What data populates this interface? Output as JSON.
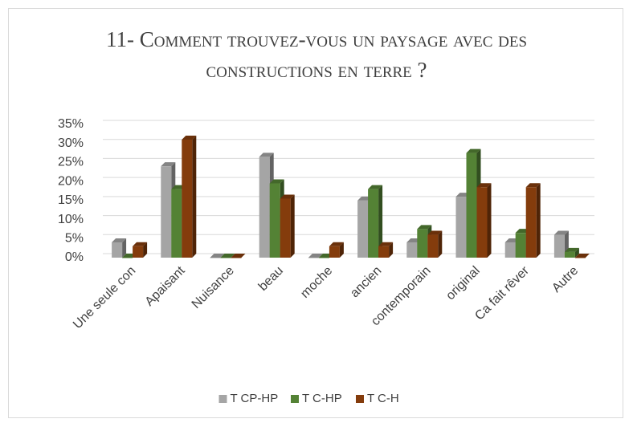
{
  "chart_data": {
    "type": "bar3d",
    "title": "11- Comment trouvez-vous un paysage avec des constructions en terre ?",
    "categories": [
      "Une seule con",
      "Apaisant",
      "Nuisance",
      "beau",
      "moche",
      "ancien",
      "contemporain",
      "original",
      "Ca fait rêver",
      "Autre"
    ],
    "series": [
      {
        "name": "T CP-HP",
        "color": "#a5a5a5",
        "values": [
          4,
          24,
          0,
          26.5,
          0,
          15,
          4,
          16,
          4,
          6
        ]
      },
      {
        "name": "T C-HP",
        "color": "#548235",
        "values": [
          0,
          18,
          0,
          19.5,
          0,
          18,
          7.5,
          27.5,
          6.5,
          1.5
        ]
      },
      {
        "name": "T C-H",
        "color": "#843c0c",
        "values": [
          3,
          31,
          0,
          15.5,
          3,
          3,
          6,
          18.5,
          18.5,
          0
        ]
      }
    ],
    "ylim": [
      0,
      35
    ],
    "yticks": [
      {
        "value": 0,
        "label": "0%"
      },
      {
        "value": 5,
        "label": "5%"
      },
      {
        "value": 10,
        "label": "10%"
      },
      {
        "value": 15,
        "label": "15%"
      },
      {
        "value": 20,
        "label": "20%"
      },
      {
        "value": 25,
        "label": "25%"
      },
      {
        "value": 30,
        "label": "30%"
      },
      {
        "value": 35,
        "label": "35%"
      }
    ],
    "grid": true,
    "legend": "bottom"
  }
}
